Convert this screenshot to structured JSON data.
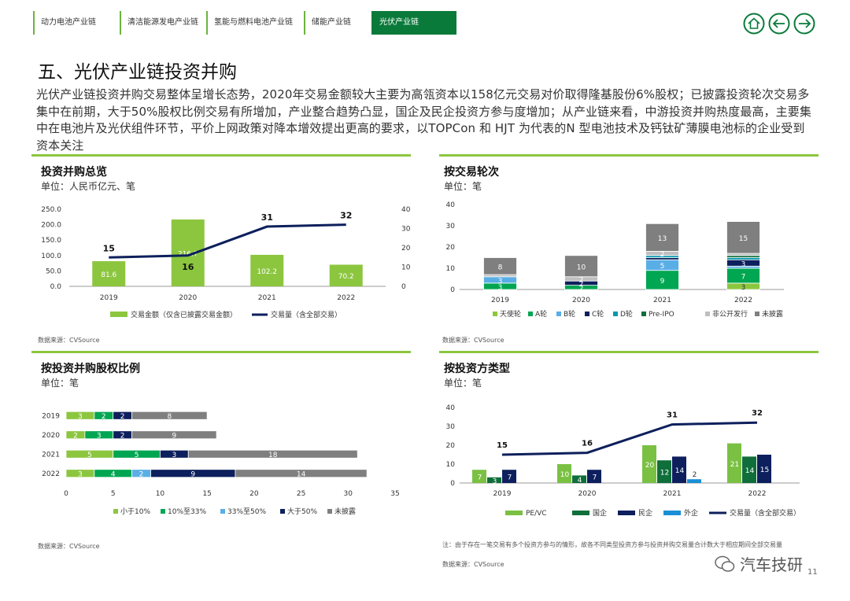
{
  "nav": {
    "tabs": [
      {
        "label": "动力电池产业链",
        "active": false
      },
      {
        "label": "清洁能源发电产业链",
        "active": false
      },
      {
        "label": "氢能与燃料电池产业链",
        "active": false
      },
      {
        "label": "储能产业链",
        "active": false
      },
      {
        "label": "光伏产业链",
        "active": true
      }
    ],
    "buttons": [
      "home-icon",
      "arrow-left-icon",
      "arrow-right-icon"
    ]
  },
  "page": {
    "title": "五、光伏产业链投资并购",
    "intro": "光伏产业链投资并购交易整体呈增长态势，2020年交易金额较大主要为高瓴资本以158亿元交易对价取得隆基股份6%股权；已披露投资轮次交易多集中在前期，大于50%股权比例交易有所增加，产业整合趋势凸显，国企及民企投资方参与度增加；从产业链来看，中游投资并购热度最高，主要集中在电池片及光伏组件环节，平价上网政策对降本增效提出更高的要求，以TOPCon 和 HJT 为代表的N 型电池技术及钙钛矿薄膜电池标的企业受到资本关注",
    "page_number": "11",
    "watermark": "汽车技研"
  },
  "colors": {
    "lightgreen": "#8cc63f",
    "green": "#00a651",
    "blue": "#1f3a93",
    "navy": "#0d1f5c",
    "lightblue": "#5aaee6",
    "teal": "#0099b0",
    "gray": "#7f7f7f",
    "lightgray": "#bfbfbf",
    "darkgreen": "#0f6e3a",
    "pegreen": "#7ac143"
  },
  "chart_data": [
    {
      "id": "overview",
      "type": "bar",
      "title": "投资并购总览",
      "unit": "单位：人民币亿元、笔",
      "source": "数据来源：CVSource",
      "categories": [
        "2019",
        "2020",
        "2021",
        "2022"
      ],
      "series": [
        {
          "name": "交易金额（仅含已披露交易金额）",
          "type": "bar",
          "axis": "left",
          "values": [
            81.6,
            216.7,
            102.2,
            70.2
          ],
          "labels": [
            "81.6",
            "216.7",
            "102.2",
            "70.2"
          ]
        },
        {
          "name": "交易量（含全部交易）",
          "type": "line",
          "axis": "right",
          "values": [
            15,
            16,
            31,
            32
          ],
          "labels": [
            "15",
            "16",
            "31",
            "32"
          ]
        }
      ],
      "left_ticks": [
        "250.0",
        "200.0",
        "150.0",
        "100.0",
        "50.0",
        "0.0"
      ],
      "left_ylim": [
        0,
        250
      ],
      "right_ticks": [
        "40",
        "30",
        "20",
        "10",
        "0"
      ],
      "right_ylim": [
        0,
        40
      ]
    },
    {
      "id": "rounds",
      "type": "bar",
      "stacked": true,
      "title": "按交易轮次",
      "unit": "单位：笔",
      "source": "数据来源：CVSource",
      "categories": [
        "2019",
        "2020",
        "2021",
        "2022"
      ],
      "y_ticks": [
        "40",
        "30",
        "20",
        "10",
        "0"
      ],
      "ylim": [
        0,
        40
      ],
      "series": [
        {
          "name": "天使轮",
          "values": [
            0,
            0,
            0,
            3
          ],
          "labels": [
            "",
            "",
            "",
            "3"
          ]
        },
        {
          "name": "A轮",
          "values": [
            3,
            2,
            9,
            7
          ],
          "labels": [
            "3",
            "2",
            "9",
            "7"
          ]
        },
        {
          "name": "B轮",
          "values": [
            3,
            0,
            5,
            1
          ],
          "labels": [
            "3",
            "",
            "5",
            ""
          ]
        },
        {
          "name": "C轮",
          "values": [
            0,
            2,
            1,
            3
          ],
          "labels": [
            "",
            "2",
            "",
            "3"
          ]
        },
        {
          "name": "D轮",
          "values": [
            0,
            0,
            1,
            1
          ],
          "labels": [
            "",
            "",
            "",
            ""
          ]
        },
        {
          "name": "Pre-IPO",
          "values": [
            0,
            0,
            0,
            1
          ],
          "labels": [
            "",
            "",
            "",
            ""
          ]
        },
        {
          "name": "非公开发行",
          "values": [
            1,
            2,
            2,
            1
          ],
          "labels": [
            "",
            "2",
            "2",
            ""
          ]
        },
        {
          "name": "未披露",
          "values": [
            8,
            10,
            13,
            15
          ],
          "labels": [
            "8",
            "10",
            "13",
            "15"
          ]
        }
      ]
    },
    {
      "id": "equity",
      "type": "bar",
      "orientation": "horizontal",
      "stacked": true,
      "title": "按投资并购股权比例",
      "unit": "单位：笔",
      "source": "数据来源：CVSource",
      "categories": [
        "2019",
        "2020",
        "2021",
        "2022"
      ],
      "x_ticks": [
        "0",
        "5",
        "10",
        "15",
        "20",
        "25",
        "30",
        "35"
      ],
      "xlim": [
        0,
        35
      ],
      "series": [
        {
          "name": "小于10%",
          "values": [
            3,
            2,
            5,
            3
          ],
          "labels": [
            "3",
            "2",
            "5",
            "3"
          ]
        },
        {
          "name": "10%至33%",
          "values": [
            2,
            3,
            5,
            4
          ],
          "labels": [
            "2",
            "3",
            "5",
            "4"
          ]
        },
        {
          "name": "33%至50%",
          "values": [
            0,
            0,
            0,
            2
          ],
          "labels": [
            "",
            "",
            "",
            "2"
          ]
        },
        {
          "name": "大于50%",
          "values": [
            2,
            2,
            3,
            9
          ],
          "labels": [
            "2",
            "2",
            "3",
            "9"
          ]
        },
        {
          "name": "未披露",
          "values": [
            8,
            9,
            18,
            14
          ],
          "labels": [
            "8",
            "9",
            "18",
            "14"
          ]
        }
      ]
    },
    {
      "id": "investor",
      "type": "bar",
      "title": "按投资方类型",
      "unit": "单位：笔",
      "note": "注：由于存在一笔交易有多个投资方参与的情形，故各不同类型投资方参与投资并购交易量合计数大于相应期间全部交易量",
      "source": "数据来源：CVSource",
      "categories": [
        "2019",
        "2020",
        "2021",
        "2022"
      ],
      "y_ticks": [
        "40",
        "30",
        "20",
        "10",
        "0"
      ],
      "ylim": [
        0,
        40
      ],
      "series": [
        {
          "name": "PE/VC",
          "type": "bar",
          "values": [
            7,
            10,
            20,
            21
          ],
          "labels": [
            "7",
            "10",
            "20",
            "21"
          ]
        },
        {
          "name": "国企",
          "type": "bar",
          "values": [
            3,
            4,
            12,
            14
          ],
          "labels": [
            "3",
            "4",
            "12",
            "14"
          ]
        },
        {
          "name": "民企",
          "type": "bar",
          "values": [
            7,
            7,
            14,
            15
          ],
          "labels": [
            "7",
            "7",
            "14",
            "15"
          ]
        },
        {
          "name": "外企",
          "type": "bar",
          "values": [
            0,
            0,
            2,
            0
          ],
          "labels": [
            "",
            "",
            "2",
            ""
          ]
        },
        {
          "name": "交易量（含全部交易）",
          "type": "line",
          "values": [
            15,
            16,
            31,
            32
          ],
          "labels": [
            "15",
            "16",
            "31",
            "32"
          ]
        }
      ]
    }
  ]
}
